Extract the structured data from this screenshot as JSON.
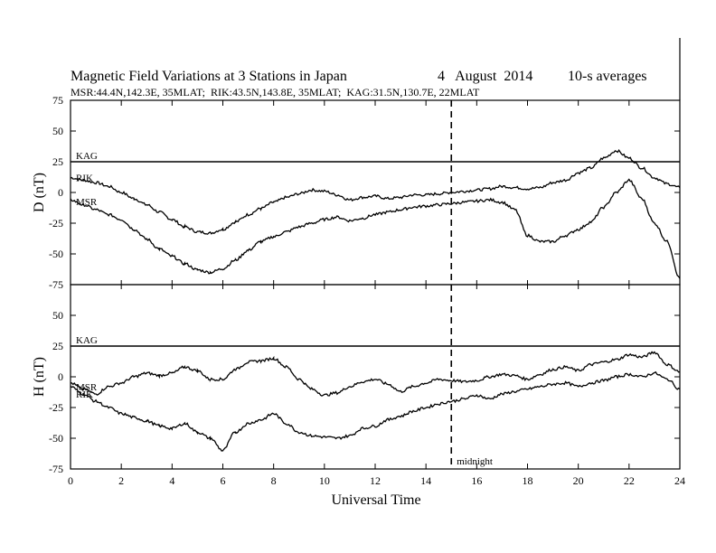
{
  "chart_data": {
    "type": "line",
    "title": "Magnetic Field Variations at 3 Stations in Japan",
    "date": "4   August  2014",
    "averaging": "10-s averages",
    "subtitle": "MSR:44.4N,142.3E, 35MLAT;  RIK:43.5N,143.8E, 35MLAT;  KAG:31.5N,130.7E, 22MLAT",
    "xlabel": "Universal Time",
    "xlim": [
      0,
      24
    ],
    "x_ticks": [
      "0",
      "2",
      "4",
      "6",
      "8",
      "10",
      "12",
      "14",
      "16",
      "18",
      "20",
      "22",
      "24"
    ],
    "midnight_marker": {
      "x": 15,
      "label": "midnight"
    },
    "panels": [
      {
        "id": "D",
        "ylabel": "D (nT)",
        "ylim": [
          -75,
          75
        ],
        "y_ticks": [
          "75",
          "50",
          "25",
          "0",
          "-25",
          "-50",
          "-75"
        ],
        "series": [
          {
            "name": "KAG",
            "x": [
              0,
              24
            ],
            "y": [
              25,
              25
            ]
          },
          {
            "name": "RIK",
            "x": [
              0,
              0.5,
              1,
              1.5,
              2,
              2.5,
              3,
              3.5,
              4,
              4.5,
              5,
              5.5,
              6,
              6.5,
              7,
              7.5,
              8,
              8.5,
              9,
              9.5,
              10,
              10.5,
              11,
              11.5,
              12,
              12.5,
              13,
              13.5,
              14,
              14.5,
              15,
              15.5,
              16,
              16.5,
              17,
              17.5,
              18,
              18.5,
              19,
              19.5,
              20,
              20.5,
              21,
              21.5,
              22,
              22.5,
              23,
              23.5,
              24
            ],
            "y": [
              12,
              10,
              8,
              5,
              0,
              -5,
              -10,
              -16,
              -22,
              -28,
              -32,
              -33,
              -30,
              -24,
              -18,
              -13,
              -8,
              -4,
              -1,
              2,
              1,
              -2,
              -6,
              -4,
              -3,
              -5,
              -4,
              -2,
              -2,
              -1,
              0,
              1,
              2,
              3,
              5,
              4,
              3,
              4,
              8,
              10,
              16,
              20,
              28,
              34,
              28,
              20,
              12,
              7,
              4
            ]
          },
          {
            "name": "MSR",
            "x": [
              0,
              0.5,
              1,
              1.5,
              2,
              2.5,
              3,
              3.5,
              4,
              4.5,
              5,
              5.5,
              6,
              6.5,
              7,
              7.5,
              8,
              8.5,
              9,
              9.5,
              10,
              10.5,
              11,
              11.5,
              12,
              12.5,
              13,
              13.5,
              14,
              14.5,
              15,
              15.5,
              16,
              16.5,
              17,
              17.5,
              18,
              18.5,
              19,
              19.5,
              20,
              20.5,
              21,
              21.5,
              22,
              22.5,
              23,
              23.5,
              24
            ],
            "y": [
              -6,
              -10,
              -14,
              -18,
              -22,
              -30,
              -38,
              -46,
              -52,
              -58,
              -63,
              -65,
              -62,
              -55,
              -47,
              -40,
              -36,
              -32,
              -28,
              -25,
              -22,
              -20,
              -23,
              -21,
              -18,
              -16,
              -14,
              -12,
              -11,
              -10,
              -9,
              -8,
              -7,
              -6,
              -8,
              -14,
              -35,
              -40,
              -40,
              -35,
              -30,
              -24,
              -12,
              0,
              10,
              -5,
              -25,
              -40,
              -70
            ]
          }
        ]
      },
      {
        "id": "H",
        "ylabel": "H (nT)",
        "ylim": [
          -75,
          75
        ],
        "y_ticks": [
          "75",
          "50",
          "25",
          "0",
          "-25",
          "-50",
          "-75"
        ],
        "series": [
          {
            "name": "KAG",
            "x": [
              0,
              24
            ],
            "y": [
              25,
              25
            ]
          },
          {
            "name": "MSR",
            "x": [
              0,
              0.5,
              1,
              1.5,
              2,
              2.5,
              3,
              3.5,
              4,
              4.5,
              5,
              5.5,
              6,
              6.5,
              7,
              7.5,
              8,
              8.5,
              9,
              9.5,
              10,
              10.5,
              11,
              11.5,
              12,
              12.5,
              13,
              13.5,
              14,
              14.5,
              15,
              15.5,
              16,
              16.5,
              17,
              17.5,
              18,
              18.5,
              19,
              19.5,
              20,
              20.5,
              21,
              21.5,
              22,
              22.5,
              23,
              23.5,
              24
            ],
            "y": [
              -5,
              -10,
              -14,
              -8,
              -5,
              0,
              3,
              1,
              3,
              8,
              5,
              -2,
              -2,
              6,
              12,
              13,
              15,
              8,
              -2,
              -10,
              -15,
              -13,
              -8,
              -4,
              -2,
              -6,
              -12,
              -8,
              -5,
              -2,
              -3,
              -4,
              -3,
              0,
              2,
              1,
              -2,
              2,
              6,
              8,
              5,
              10,
              12,
              14,
              18,
              16,
              20,
              10,
              4
            ]
          },
          {
            "name": "RIK",
            "x": [
              0,
              0.5,
              1,
              1.5,
              2,
              2.5,
              3,
              3.5,
              4,
              4.5,
              5,
              5.5,
              6,
              6.5,
              7,
              7.5,
              8,
              8.5,
              9,
              9.5,
              10,
              10.5,
              11,
              11.5,
              12,
              12.5,
              13,
              13.5,
              14,
              14.5,
              15,
              15.5,
              16,
              16.5,
              17,
              17.5,
              18,
              18.5,
              19,
              19.5,
              20,
              20.5,
              21,
              21.5,
              22,
              22.5,
              23,
              23.5,
              24
            ],
            "y": [
              -8,
              -14,
              -20,
              -25,
              -30,
              -33,
              -36,
              -40,
              -42,
              -38,
              -45,
              -50,
              -60,
              -45,
              -38,
              -35,
              -30,
              -38,
              -45,
              -48,
              -49,
              -50,
              -48,
              -42,
              -40,
              -35,
              -32,
              -28,
              -25,
              -22,
              -20,
              -18,
              -15,
              -18,
              -14,
              -12,
              -10,
              -8,
              -6,
              -5,
              -8,
              -5,
              -3,
              0,
              2,
              0,
              3,
              -2,
              -10
            ]
          }
        ]
      }
    ]
  }
}
